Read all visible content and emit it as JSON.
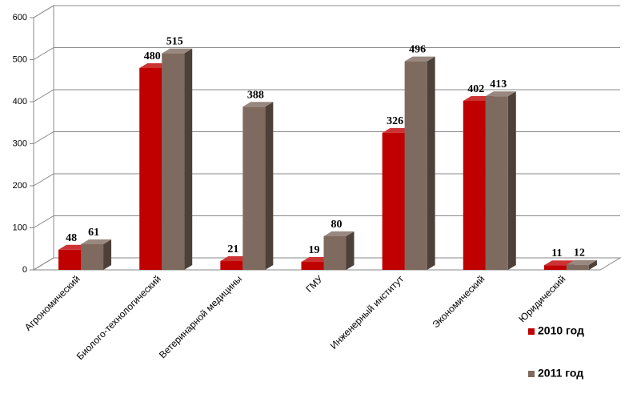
{
  "chart_data": {
    "type": "bar3d",
    "categories": [
      "Агрономический",
      "Биолого-технологический",
      "Ветеринарной медицины",
      "ГМУ",
      "Инженерный институт",
      "Экономический",
      "Юридический"
    ],
    "series": [
      {
        "name": "2010 год",
        "color": "#c00000",
        "values": [
          48,
          480,
          21,
          19,
          326,
          402,
          11
        ]
      },
      {
        "name": "2011 год",
        "color": "#7f6a5f",
        "values": [
          61,
          515,
          388,
          80,
          496,
          413,
          12
        ]
      }
    ],
    "ylim": [
      0,
      600
    ],
    "yticks": [
      0,
      100,
      200,
      300,
      400,
      500,
      600
    ],
    "grid": true,
    "legend": "bottom-right"
  }
}
